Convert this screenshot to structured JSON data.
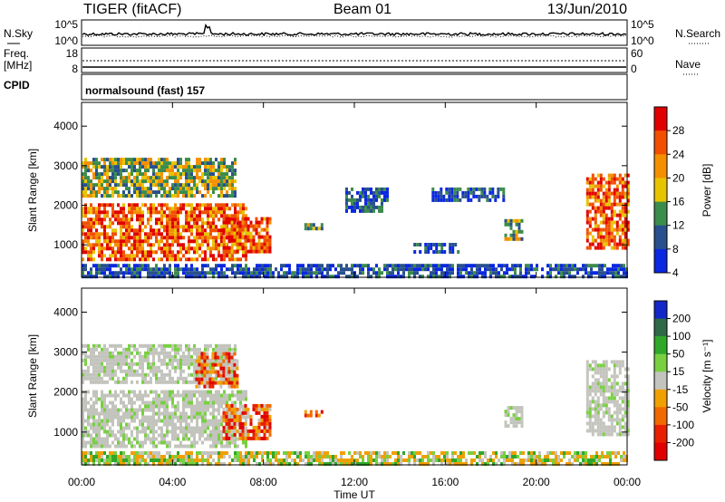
{
  "header": {
    "station": "TIGER (fitACF)",
    "beam": "Beam 01",
    "date": "13/Jun/2010"
  },
  "top_panels": {
    "nsky_label": "N.Sky",
    "nsky_ticks": [
      "10^5",
      "10^0"
    ],
    "nsearch_label": "N.Search",
    "nsearch_ticks": [
      "10^5",
      "10^0"
    ],
    "freq_label": "Freq.",
    "freq_unit": "[MHz]",
    "freq_ticks": [
      "18",
      "8"
    ],
    "nave_label": "Nave",
    "nave_ticks": [
      "60",
      "0"
    ],
    "cpid_label": "CPID",
    "cpid_value": "normalsound (fast) 157"
  },
  "chart_data": [
    {
      "type": "heatmap",
      "name": "power",
      "ylabel": "Slant Range [km]",
      "xlabel": "Time UT",
      "xlim": [
        0,
        24
      ],
      "ylim": [
        180,
        4600
      ],
      "yticks": [
        1000,
        2000,
        3000,
        4000
      ],
      "xticks": [
        "00:00",
        "04:00",
        "08:00",
        "12:00",
        "16:00",
        "20:00",
        "00:00"
      ],
      "colorbar": {
        "label": "Power [dB]",
        "ticks": [
          "28",
          "24",
          "20",
          "16",
          "12",
          "8",
          "4"
        ],
        "colors": [
          "#e00000",
          "#f05000",
          "#f49000",
          "#e8c400",
          "#3c8c4c",
          "#28508c",
          "#0a28e0"
        ]
      },
      "regions": [
        {
          "t0": 0.0,
          "t1": 7.2,
          "r0": 650,
          "r1": 2050,
          "level": "high"
        },
        {
          "t0": 0.0,
          "t1": 6.8,
          "r0": 2250,
          "r1": 3200,
          "level": "mid"
        },
        {
          "t0": 6.2,
          "t1": 8.3,
          "r0": 800,
          "r1": 1700,
          "level": "high"
        },
        {
          "t0": 9.8,
          "t1": 10.6,
          "r0": 1380,
          "r1": 1550,
          "level": "mid"
        },
        {
          "t0": 11.6,
          "t1": 13.4,
          "r0": 1900,
          "r1": 2450,
          "level": "low"
        },
        {
          "t0": 14.6,
          "t1": 16.6,
          "r0": 800,
          "r1": 1050,
          "level": "low"
        },
        {
          "t0": 15.4,
          "t1": 18.6,
          "r0": 2150,
          "r1": 2450,
          "level": "low"
        },
        {
          "t0": 18.6,
          "t1": 19.4,
          "r0": 1150,
          "r1": 1650,
          "level": "mid"
        },
        {
          "t0": 22.2,
          "t1": 24.0,
          "r0": 900,
          "r1": 2800,
          "level": "high"
        },
        {
          "t0": 0.0,
          "t1": 24.0,
          "r0": 180,
          "r1": 520,
          "level": "low"
        }
      ]
    },
    {
      "type": "heatmap",
      "name": "velocity",
      "ylabel": "Slant Range [km]",
      "xlabel": "Time UT",
      "xlim": [
        0,
        24
      ],
      "ylim": [
        180,
        4600
      ],
      "yticks": [
        1000,
        2000,
        3000,
        4000
      ],
      "xticks": [
        "00:00",
        "04:00",
        "08:00",
        "12:00",
        "16:00",
        "20:00",
        "00:00"
      ],
      "colorbar": {
        "label": "Velocity [m s⁻¹]",
        "ticks": [
          "200",
          "100",
          "50",
          "15",
          "-15",
          "-50",
          "-100",
          "-200"
        ],
        "colors": [
          "#1428c8",
          "#2e6a46",
          "#2fa82a",
          "#78d040",
          "#c4c4be",
          "#f0a000",
          "#f06a00",
          "#e82000",
          "#e00000"
        ]
      },
      "regions": [
        {
          "t0": 0.0,
          "t1": 7.2,
          "r0": 650,
          "r1": 2050,
          "level": "ground"
        },
        {
          "t0": 0.0,
          "t1": 6.8,
          "r0": 2250,
          "r1": 3200,
          "level": "ground"
        },
        {
          "t0": 6.2,
          "t1": 8.3,
          "r0": 800,
          "r1": 1700,
          "level": "negative"
        },
        {
          "t0": 5.0,
          "t1": 6.8,
          "r0": 2100,
          "r1": 3000,
          "level": "negative"
        },
        {
          "t0": 9.8,
          "t1": 10.6,
          "r0": 1380,
          "r1": 1550,
          "level": "negative"
        },
        {
          "t0": 18.6,
          "t1": 19.4,
          "r0": 1150,
          "r1": 1650,
          "level": "ground"
        },
        {
          "t0": 22.2,
          "t1": 24.0,
          "r0": 900,
          "r1": 2800,
          "level": "ground"
        },
        {
          "t0": 0.0,
          "t1": 24.0,
          "r0": 180,
          "r1": 520,
          "level": "positive"
        }
      ]
    }
  ]
}
